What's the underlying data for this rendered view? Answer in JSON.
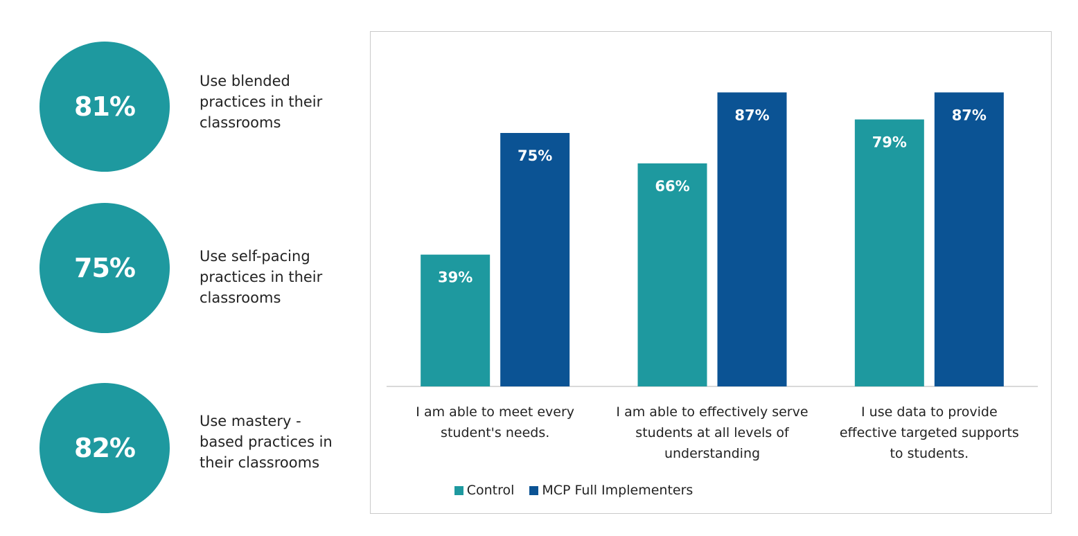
{
  "stats": [
    {
      "value": "81%",
      "lines": [
        "Use blended",
        "practices in their",
        "classrooms"
      ]
    },
    {
      "value": "75%",
      "lines": [
        "Use self-pacing",
        "practices in their",
        "classrooms"
      ]
    },
    {
      "value": "82%",
      "lines": [
        "Use mastery -",
        "based practices in",
        "their classrooms"
      ]
    }
  ],
  "colors": {
    "circle": "#1e999f",
    "control": "#1e999f",
    "mcp": "#0b5394"
  },
  "chart_data": {
    "type": "bar",
    "categories": [
      [
        "I am able to meet every",
        "student's needs."
      ],
      [
        "I am able to effectively serve",
        "students at all levels of",
        "understanding"
      ],
      [
        "I use data to provide",
        "effective targeted supports",
        "to students."
      ]
    ],
    "series": [
      {
        "name": "Control",
        "values": [
          39,
          66,
          79
        ],
        "labels": [
          "39%",
          "66%",
          "79%"
        ]
      },
      {
        "name": "MCP Full Implementers",
        "values": [
          75,
          87,
          87
        ],
        "labels": [
          "75%",
          "87%",
          "87%"
        ]
      }
    ],
    "ylim": [
      0,
      100
    ],
    "grid": false,
    "legend_position": "bottom"
  }
}
